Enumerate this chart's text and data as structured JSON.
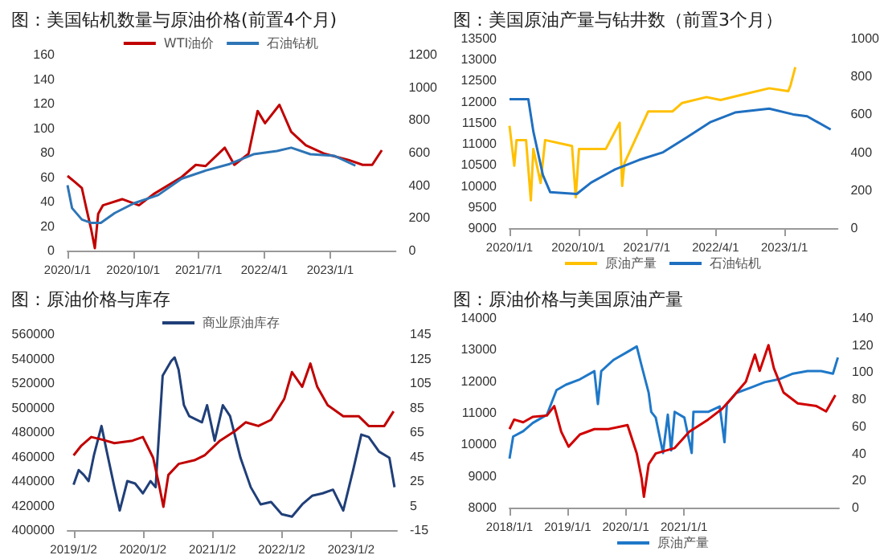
{
  "chart_data": [
    {
      "type": "line",
      "title": "图：美国钻机数量与原油价格(前置4个月)",
      "legend": "top",
      "marker": "none",
      "xlim": [
        "2020-01-01",
        "2023-10-01"
      ],
      "xticks": [
        {
          "value": "2020-01-01",
          "label": "2020/1/1"
        },
        {
          "value": "2020-10-01",
          "label": "2020/10/1"
        },
        {
          "value": "2021-07-01",
          "label": "2021/7/1"
        },
        {
          "value": "2022-04-01",
          "label": "2022/4/1"
        },
        {
          "value": "2023-01-01",
          "label": "2023/1/1"
        }
      ],
      "ylim": [
        0,
        160
      ],
      "yticks": [
        0,
        20,
        40,
        60,
        80,
        100,
        120,
        140,
        160
      ],
      "y2lim": [
        0,
        1200
      ],
      "y2ticks": [
        0,
        200,
        400,
        600,
        800,
        1000,
        1200
      ],
      "series": [
        {
          "name": "WTI油价",
          "color": "#c00000",
          "x": [
            "2020-01-01",
            "2020-02-01",
            "2020-03-01",
            "2020-03-19",
            "2020-04-08",
            "2020-04-24",
            "2020-05-08",
            "2020-05-28",
            "2020-08-16",
            "2020-10-25",
            "2020-12-24",
            "2021-04-21",
            "2021-06-19",
            "2021-07-30",
            "2021-10-18",
            "2021-11-27",
            "2022-01-25",
            "2022-03-04",
            "2022-04-04",
            "2022-06-03",
            "2022-07-22",
            "2022-09-21",
            "2022-12-09",
            "2023-03-18",
            "2023-05-16",
            "2023-06-25",
            "2023-08-04"
          ],
          "values": [
            61,
            56,
            51,
            35,
            18,
            2,
            30,
            37,
            42,
            37,
            46,
            60,
            70,
            69,
            84,
            70,
            79,
            114,
            104,
            119,
            97,
            86,
            79,
            74,
            70,
            70,
            82
          ]
        },
        {
          "name": "石油钻机",
          "color": "#2e75b6",
          "axis": "y2",
          "x": [
            "2020-01-01",
            "2020-01-20",
            "2020-03-01",
            "2020-04-08",
            "2020-05-19",
            "2020-07-16",
            "2020-10-05",
            "2021-01-13",
            "2021-04-21",
            "2021-07-30",
            "2021-11-07",
            "2022-02-15",
            "2022-05-24",
            "2022-07-22",
            "2022-10-10",
            "2023-01-19",
            "2023-04-16"
          ],
          "values": [
            400,
            260,
            190,
            170,
            170,
            230,
            290,
            340,
            440,
            490,
            530,
            590,
            610,
            630,
            590,
            580,
            520
          ]
        }
      ]
    },
    {
      "type": "line",
      "title": "图：美国原油产量与钻井数（前置3个月）",
      "legend": "bottom",
      "marker": "none",
      "xlim": [
        "2020-01-01",
        "2023-08-01"
      ],
      "xticks": [
        {
          "value": "2020-01-01",
          "label": "2020/1/1"
        },
        {
          "value": "2020-10-01",
          "label": "2020/10/1"
        },
        {
          "value": "2021-07-01",
          "label": "2021/7/1"
        },
        {
          "value": "2022-04-01",
          "label": "2022/4/1"
        },
        {
          "value": "2023-01-01",
          "label": "2023/1/1"
        }
      ],
      "ylim": [
        9000,
        13500
      ],
      "yticks": [
        9000,
        9500,
        10000,
        10500,
        11000,
        11500,
        12000,
        12500,
        13000,
        13500
      ],
      "y2lim": [
        0,
        1000
      ],
      "y2ticks": [
        0,
        200,
        400,
        600,
        800,
        1000
      ],
      "series": [
        {
          "name": "原油产量",
          "color": "#ffc000",
          "x": [
            "2020-01-01",
            "2020-01-20",
            "2020-01-29",
            "2020-03-07",
            "2020-03-26",
            "2020-04-05",
            "2020-05-04",
            "2020-05-22",
            "2020-09-06",
            "2020-09-21",
            "2020-10-04",
            "2021-01-19",
            "2021-03-15",
            "2021-03-25",
            "2021-04-03",
            "2021-07-07",
            "2021-10-12",
            "2021-11-19",
            "2022-02-24",
            "2022-04-21",
            "2022-07-25",
            "2022-11-01",
            "2023-01-16",
            "2023-01-25",
            "2023-02-13"
          ],
          "values": [
            11430,
            10480,
            11090,
            11090,
            9660,
            10880,
            10070,
            11090,
            10950,
            9730,
            10880,
            10880,
            11500,
            10000,
            10540,
            11770,
            11770,
            11970,
            12110,
            12040,
            12180,
            12320,
            12250,
            12390,
            12820
          ]
        },
        {
          "name": "石油钻机",
          "color": "#1f6fc0",
          "axis": "y2",
          "x": [
            "2020-01-01",
            "2020-03-16",
            "2020-04-05",
            "2020-05-13",
            "2020-06-11",
            "2020-09-25",
            "2020-11-21",
            "2021-02-25",
            "2021-06-01",
            "2021-09-04",
            "2021-12-09",
            "2022-03-13",
            "2022-06-18",
            "2022-11-01",
            "2023-02-04",
            "2023-04-01",
            "2023-07-04"
          ],
          "values": [
            680,
            680,
            510,
            280,
            190,
            180,
            240,
            310,
            360,
            400,
            480,
            560,
            610,
            630,
            600,
            590,
            520
          ]
        }
      ]
    },
    {
      "type": "line",
      "title": "图：原油价格与库存",
      "legend": "top",
      "marker": "none",
      "xlim": [
        "2018-12-01",
        "2023-09-01"
      ],
      "xticks": [
        {
          "value": "2019-01-02",
          "label": "2019/1/2"
        },
        {
          "value": "2020-01-02",
          "label": "2020/1/2"
        },
        {
          "value": "2021-01-02",
          "label": "2021/1/2"
        },
        {
          "value": "2022-01-02",
          "label": "2022/1/2"
        },
        {
          "value": "2023-01-02",
          "label": "2023/1/2"
        }
      ],
      "ylim": [
        400000,
        560000
      ],
      "yticks": [
        400000,
        420000,
        440000,
        460000,
        480000,
        500000,
        520000,
        540000,
        560000
      ],
      "y2lim": [
        -15,
        145
      ],
      "y2ticks": [
        -15,
        5,
        25,
        45,
        65,
        85,
        105,
        125,
        145
      ],
      "series": [
        {
          "name": "商业原油库存",
          "color": "#203f78",
          "x": [
            "2019-01-02",
            "2019-01-29",
            "2019-02-25",
            "2019-03-22",
            "2019-04-19",
            "2019-05-29",
            "2019-06-26",
            "2019-08-05",
            "2019-09-02",
            "2019-10-12",
            "2019-11-22",
            "2020-01-02",
            "2020-02-11",
            "2020-03-09",
            "2020-04-15",
            "2020-05-30",
            "2020-06-17",
            "2020-07-08",
            "2020-08-05",
            "2020-09-02",
            "2020-11-08",
            "2020-12-05",
            "2021-01-14",
            "2021-02-26",
            "2021-04-05",
            "2021-05-30",
            "2021-07-23",
            "2021-09-13",
            "2021-11-07",
            "2022-01-02",
            "2022-02-25",
            "2022-04-20",
            "2022-06-11",
            "2022-08-05",
            "2022-09-29",
            "2022-11-22",
            "2023-01-13",
            "2023-02-25",
            "2023-04-05",
            "2023-05-30",
            "2023-07-23",
            "2023-08-19"
          ],
          "values": [
            437000,
            449000,
            445000,
            440000,
            461000,
            485000,
            464000,
            435000,
            416000,
            440000,
            438000,
            430000,
            440000,
            435000,
            526000,
            538000,
            541000,
            531000,
            502000,
            493000,
            488000,
            502000,
            473000,
            502000,
            493000,
            459000,
            435000,
            421000,
            423000,
            413000,
            411000,
            421000,
            428000,
            430000,
            433000,
            416000,
            449000,
            478000,
            476000,
            464000,
            459000,
            435000
          ]
        },
        {
          "color": "#c00000",
          "axis": "y2",
          "x": [
            "2019-01-02",
            "2019-02-12",
            "2019-04-05",
            "2019-05-29",
            "2019-08-05",
            "2019-11-08",
            "2020-01-02",
            "2020-02-25",
            "2020-03-27",
            "2020-04-19",
            "2020-05-15",
            "2020-07-08",
            "2020-09-29",
            "2020-11-22",
            "2021-02-11",
            "2021-05-02",
            "2021-06-26",
            "2021-09-01",
            "2021-11-07",
            "2022-01-15",
            "2022-02-25",
            "2022-04-20",
            "2022-06-02",
            "2022-07-08",
            "2022-09-01",
            "2022-11-22",
            "2023-02-11",
            "2023-04-05",
            "2023-06-26",
            "2023-08-14"
          ],
          "values": [
            46,
            54,
            61,
            59,
            56,
            58,
            61,
            44,
            22,
            4,
            30,
            39,
            42,
            46,
            58,
            66,
            73,
            70,
            75,
            92,
            114,
            102,
            121,
            102,
            87,
            78,
            78,
            70,
            70,
            82
          ]
        }
      ]
    },
    {
      "type": "line",
      "title": "图：原油价格与美国原油产量",
      "legend": "bottom",
      "marker": "none",
      "xlim": [
        "2018-01-01",
        "2023-09-01"
      ],
      "xticks": [
        {
          "value": "2018-01-01",
          "label": "2018/1/1"
        },
        {
          "value": "2019-01-01",
          "label": "2019/1/1"
        },
        {
          "value": "2020-01-01",
          "label": "2020/1/1"
        },
        {
          "value": "2021-01-01",
          "label": "2021/1/1"
        }
      ],
      "ylim": [
        8000,
        14000
      ],
      "yticks": [
        8000,
        9000,
        10000,
        11000,
        12000,
        13000,
        14000
      ],
      "y2lim": [
        0,
        140
      ],
      "y2ticks": [
        0,
        20,
        40,
        60,
        80,
        100,
        120,
        140
      ],
      "series": [
        {
          "name": "原油产量",
          "color": "#1f78c8",
          "x": [
            "2018-01-01",
            "2018-01-24",
            "2018-03-28",
            "2018-05-27",
            "2018-08-24",
            "2018-10-23",
            "2018-12-21",
            "2019-03-19",
            "2019-06-18",
            "2019-07-10",
            "2019-07-31",
            "2019-10-15",
            "2020-01-12",
            "2020-03-10",
            "2020-04-09",
            "2020-05-24",
            "2020-06-09",
            "2020-07-07",
            "2020-08-22",
            "2020-09-21",
            "2020-10-12",
            "2020-11-03",
            "2021-01-03",
            "2021-02-18",
            "2021-03-01",
            "2021-06-01",
            "2021-08-13",
            "2021-09-12",
            "2021-09-27",
            "2021-11-25",
            "2022-02-24",
            "2022-05-22",
            "2022-08-19",
            "2022-11-16",
            "2023-02-15",
            "2023-05-12",
            "2023-07-25",
            "2023-08-25"
          ],
          "values": [
            9550,
            10250,
            10420,
            10680,
            10940,
            11720,
            11890,
            12060,
            12320,
            11280,
            12320,
            12670,
            12930,
            13100,
            12500,
            11630,
            11030,
            10850,
            9730,
            10940,
            9810,
            11030,
            10850,
            9730,
            11030,
            11030,
            11200,
            10070,
            11280,
            11630,
            11800,
            11970,
            12060,
            12240,
            12320,
            12320,
            12240,
            12750
          ]
        },
        {
          "color": "#d00000",
          "axis": "y2",
          "x": [
            "2018-01-01",
            "2018-01-30",
            "2018-03-28",
            "2018-05-27",
            "2018-08-24",
            "2018-10-09",
            "2018-11-22",
            "2019-01-07",
            "2019-03-19",
            "2019-06-18",
            "2019-09-15",
            "2020-01-12",
            "2020-03-10",
            "2020-04-09",
            "2020-04-24",
            "2020-05-24",
            "2020-07-07",
            "2020-11-03",
            "2021-02-03",
            "2021-06-01",
            "2021-08-28",
            "2021-10-28",
            "2022-01-24",
            "2022-03-22",
            "2022-04-21",
            "2022-06-15",
            "2022-07-19",
            "2022-09-18",
            "2022-12-16",
            "2023-04-12",
            "2023-06-12",
            "2023-08-09"
          ],
          "values": [
            58,
            65,
            63,
            67,
            68,
            75,
            56,
            45,
            54,
            58,
            58,
            61,
            40,
            22,
            8,
            32,
            40,
            44,
            56,
            65,
            73,
            81,
            93,
            113,
            101,
            120,
            103,
            85,
            77,
            75,
            71,
            83
          ]
        }
      ]
    }
  ]
}
